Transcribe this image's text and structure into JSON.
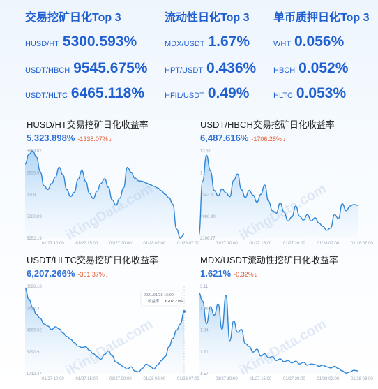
{
  "rankings": [
    {
      "title": "交易挖矿日化Top 3",
      "items": [
        {
          "pair": "HUSD/HT",
          "value": "5300.593%"
        },
        {
          "pair": "USDT/HBCH",
          "value": "9545.675%"
        },
        {
          "pair": "USDT/HLTC",
          "value": "6465.118%"
        }
      ]
    },
    {
      "title": "流动性日化Top 3",
      "items": [
        {
          "pair": "MDX/USDT",
          "value": "1.67%"
        },
        {
          "pair": "HPT/USDT",
          "value": "0.436%"
        },
        {
          "pair": "HFIL/USDT",
          "value": "0.49%"
        }
      ]
    },
    {
      "title": "单币质押日化Top 3",
      "items": [
        {
          "pair": "WHT",
          "value": "0.056%"
        },
        {
          "pair": "HBCH",
          "value": "0.052%"
        },
        {
          "pair": "HLTC",
          "value": "0.053%"
        }
      ]
    }
  ],
  "watermark": "iKingData.com",
  "colors": {
    "line": "#2f86d6",
    "accent": "#1f5fd0",
    "down": "#e2572d"
  },
  "chart_data": [
    {
      "type": "area",
      "title": "HUSD/HT交易挖矿日化收益率",
      "current_value": "5,323.898%",
      "change": "-1338.07%",
      "change_arrow": "↓",
      "yticks": [
        "6863.82",
        "6535.9",
        "6108",
        "5680.09",
        "5252.19"
      ],
      "ylim": [
        5252.19,
        6863.82
      ],
      "xticks": [
        "01/27 10:00",
        "01/27 15:00",
        "01/27 20:00",
        "01/28 02:00",
        "01/28 07:00"
      ],
      "y": [
        6620,
        6800,
        6860,
        6750,
        6480,
        6220,
        6150,
        6260,
        6380,
        6560,
        6420,
        6150,
        6020,
        6100,
        6340,
        6500,
        6300,
        6080,
        5980,
        6120,
        6260,
        6350,
        6190,
        5960,
        5860,
        5990,
        6180,
        6560,
        6470,
        6360,
        6310,
        6300,
        6270,
        6240,
        6210,
        6180,
        6130,
        6060,
        6000,
        5880,
        5420,
        5250,
        5330
      ]
    },
    {
      "type": "area",
      "title": "USDT/HBCH交易挖矿日化收益率",
      "current_value": "6,487.616%",
      "change": "-1706.28%",
      "change_arrow": "↓",
      "yticks": [
        "13.37",
        "1",
        "7543.5",
        "4986.40",
        "2196.77"
      ],
      "ylim": [
        2196.77,
        13370
      ],
      "xticks": [
        "01/27 10:00",
        "01/27 15:00",
        "01/27 20:00",
        "01/28 02:00",
        "01/28 07:00"
      ],
      "y": [
        2500,
        9500,
        12800,
        10800,
        8300,
        7600,
        8500,
        8000,
        7500,
        9600,
        10400,
        8400,
        7400,
        8300,
        7700,
        6800,
        7800,
        9000,
        6900,
        5700,
        5400,
        6700,
        5500,
        4400,
        4900,
        6300,
        5000,
        4500,
        5200,
        4400,
        4800,
        4100,
        3700,
        3200,
        3500,
        5200,
        4700,
        6600,
        5700,
        6300,
        6500,
        6400
      ]
    },
    {
      "type": "area",
      "title": "USDT/HLTC交易挖矿日化收益率",
      "current_value": "6,207.266%",
      "change": "-361.37%",
      "change_arrow": "↓",
      "yticks": [
        "8026.18",
        "6427.3",
        "4869.32",
        "3290.9",
        "1712.47"
      ],
      "ylim": [
        1712.47,
        8026.18
      ],
      "xticks": [
        "01/27 10:00",
        "01/27 15:00",
        "01/27 20:00",
        "01/28 02:00",
        "01/28 07:00"
      ],
      "tooltip": {
        "time": "2021/01/28 16:00",
        "label": "收益率",
        "value": "6207.27%"
      },
      "y": [
        7900,
        7100,
        6500,
        6000,
        5700,
        5300,
        5150,
        4900,
        5100,
        4950,
        4650,
        4400,
        4200,
        3950,
        3700,
        3600,
        3650,
        3400,
        3150,
        2950,
        2750,
        3100,
        3350,
        3000,
        2550,
        2400,
        2200,
        2050,
        2200,
        1900,
        1850,
        2100,
        2400,
        2250,
        2050,
        2350,
        2650,
        2950,
        3650,
        4250,
        4850,
        5300,
        6207
      ]
    },
    {
      "type": "area",
      "title": "MDX/USDT流动性挖矿日化收益率",
      "current_value": "1.621%",
      "change": "-0.32%",
      "change_arrow": "↓",
      "yticks": [
        "3.11",
        "1.96",
        "1.84",
        "1.71",
        "1.57"
      ],
      "ylim": [
        1.57,
        3.11
      ],
      "xticks": [
        "01/27 10:00",
        "01/27 15:00",
        "01/27 20:00",
        "01/28 02:00",
        "01/28 08:00"
      ],
      "y": [
        3.0,
        2.85,
        2.45,
        2.75,
        2.6,
        2.8,
        2.35,
        2.95,
        2.15,
        2.5,
        2.3,
        2.35,
        2.1,
        2.05,
        1.95,
        2.0,
        1.88,
        1.92,
        1.85,
        1.87,
        1.8,
        1.83,
        1.78,
        1.8,
        1.76,
        1.79,
        1.74,
        1.77,
        1.72,
        1.74,
        1.73,
        1.7,
        1.72,
        1.69,
        1.67,
        1.7,
        1.66,
        1.62,
        1.58,
        1.6,
        1.63,
        1.62
      ]
    }
  ]
}
